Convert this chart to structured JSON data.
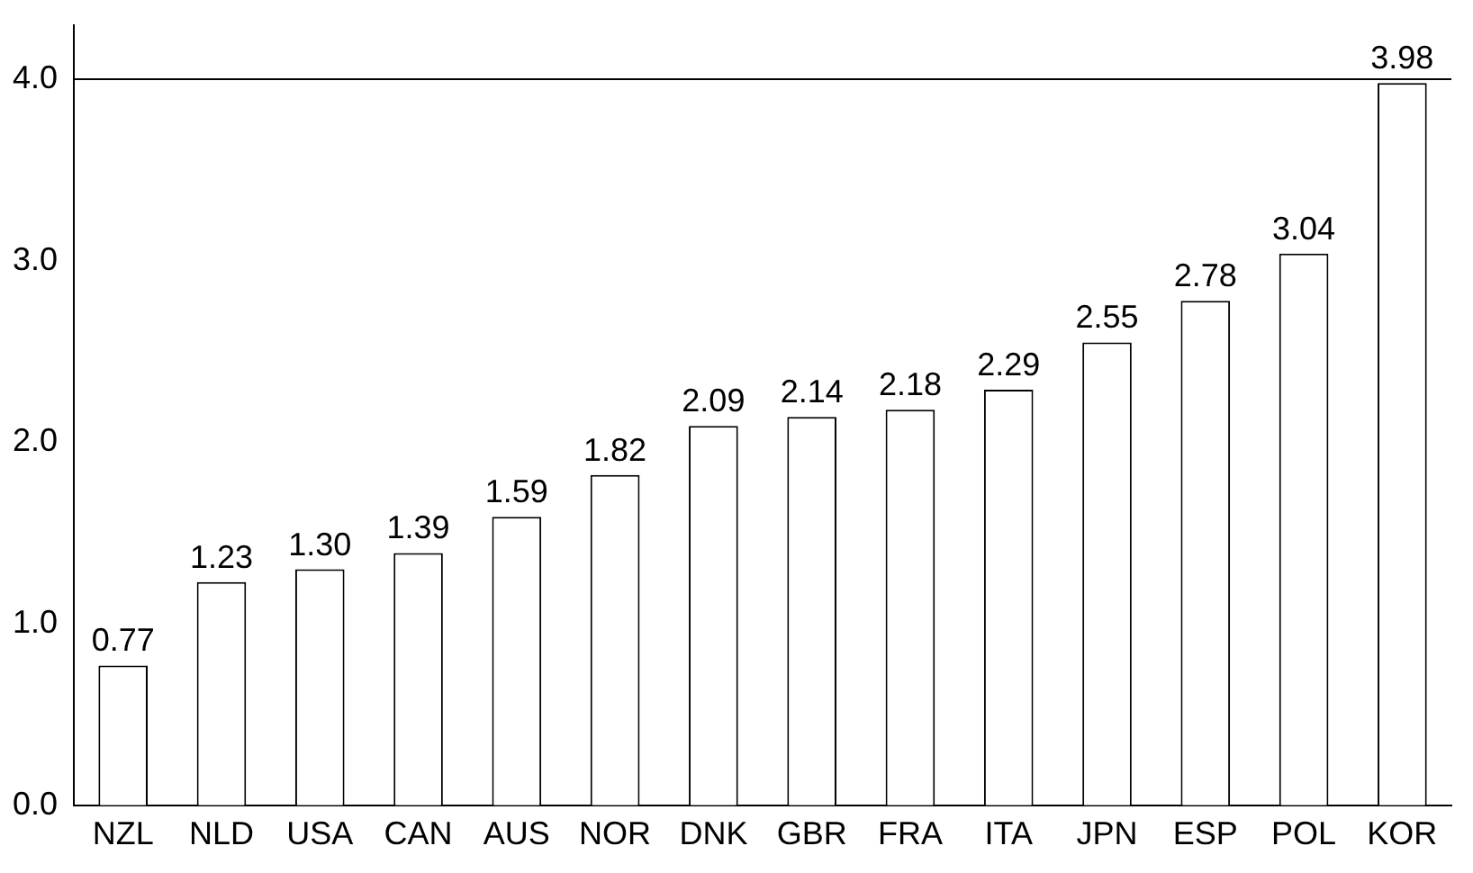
{
  "chart_data": {
    "type": "bar",
    "categories": [
      "NZL",
      "NLD",
      "USA",
      "CAN",
      "AUS",
      "NOR",
      "DNK",
      "GBR",
      "FRA",
      "ITA",
      "JPN",
      "ESP",
      "POL",
      "KOR"
    ],
    "values": [
      0.77,
      1.23,
      1.3,
      1.39,
      1.59,
      1.82,
      2.09,
      2.14,
      2.18,
      2.29,
      2.55,
      2.78,
      3.04,
      3.98
    ],
    "value_labels": [
      "0.77",
      "1.23",
      "1.30",
      "1.39",
      "1.59",
      "1.82",
      "2.09",
      "2.14",
      "2.18",
      "2.29",
      "2.55",
      "2.78",
      "3.04",
      "3.98"
    ],
    "color": "#ffffff",
    "ylim": [
      0,
      4.3
    ],
    "yticks": [
      {
        "value": 0,
        "label": "0.0"
      },
      {
        "value": 1,
        "label": "1.0"
      },
      {
        "value": 2,
        "label": "2.0"
      },
      {
        "value": 3,
        "label": "3.0"
      },
      {
        "value": 4,
        "label": "4.0"
      }
    ],
    "ref_lines": [
      {
        "axis": "y",
        "value": 4,
        "color": "#000000"
      }
    ],
    "grid": false,
    "legend": false
  }
}
